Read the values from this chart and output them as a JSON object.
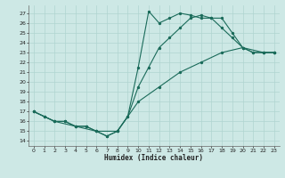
{
  "xlabel": "Humidex (Indice chaleur)",
  "xlim": [
    -0.5,
    23.5
  ],
  "ylim": [
    13.5,
    27.8
  ],
  "yticks": [
    14,
    15,
    16,
    17,
    18,
    19,
    20,
    21,
    22,
    23,
    24,
    25,
    26,
    27
  ],
  "xticks": [
    0,
    1,
    2,
    3,
    4,
    5,
    6,
    7,
    8,
    9,
    10,
    11,
    12,
    13,
    14,
    15,
    16,
    17,
    18,
    19,
    20,
    21,
    22,
    23
  ],
  "bg_color": "#cde8e5",
  "grid_color": "#b0d4d0",
  "line_color": "#1a6b5a",
  "line1_x": [
    0,
    1,
    2,
    3,
    4,
    5,
    6,
    7,
    8,
    9,
    10,
    11,
    12,
    13,
    14,
    15,
    16,
    17,
    18,
    19,
    20,
    21,
    22,
    23
  ],
  "line1_y": [
    17,
    16.5,
    16,
    16,
    15.5,
    15.5,
    15,
    14.5,
    15,
    16.5,
    21.5,
    27.2,
    26.0,
    26.5,
    27.0,
    26.8,
    26.5,
    26.5,
    26.5,
    25.0,
    23.5,
    23.0,
    23.0,
    23.0
  ],
  "line2_x": [
    0,
    1,
    2,
    3,
    4,
    5,
    6,
    7,
    8,
    9,
    10,
    11,
    12,
    13,
    14,
    15,
    16,
    17,
    18,
    19,
    20,
    21,
    22,
    23
  ],
  "line2_y": [
    17,
    16.5,
    16,
    16,
    15.5,
    15.5,
    15,
    14.5,
    15,
    16.5,
    19.5,
    21.5,
    23.5,
    24.5,
    25.5,
    26.5,
    26.8,
    26.5,
    25.5,
    24.5,
    23.5,
    23.0,
    23.0,
    23.0
  ],
  "line3_x": [
    0,
    2,
    4,
    6,
    8,
    10,
    12,
    14,
    16,
    18,
    20,
    22,
    23
  ],
  "line3_y": [
    17,
    16,
    15.5,
    15,
    15,
    18,
    19.5,
    21,
    22,
    23,
    23.5,
    23.0,
    23.0
  ]
}
